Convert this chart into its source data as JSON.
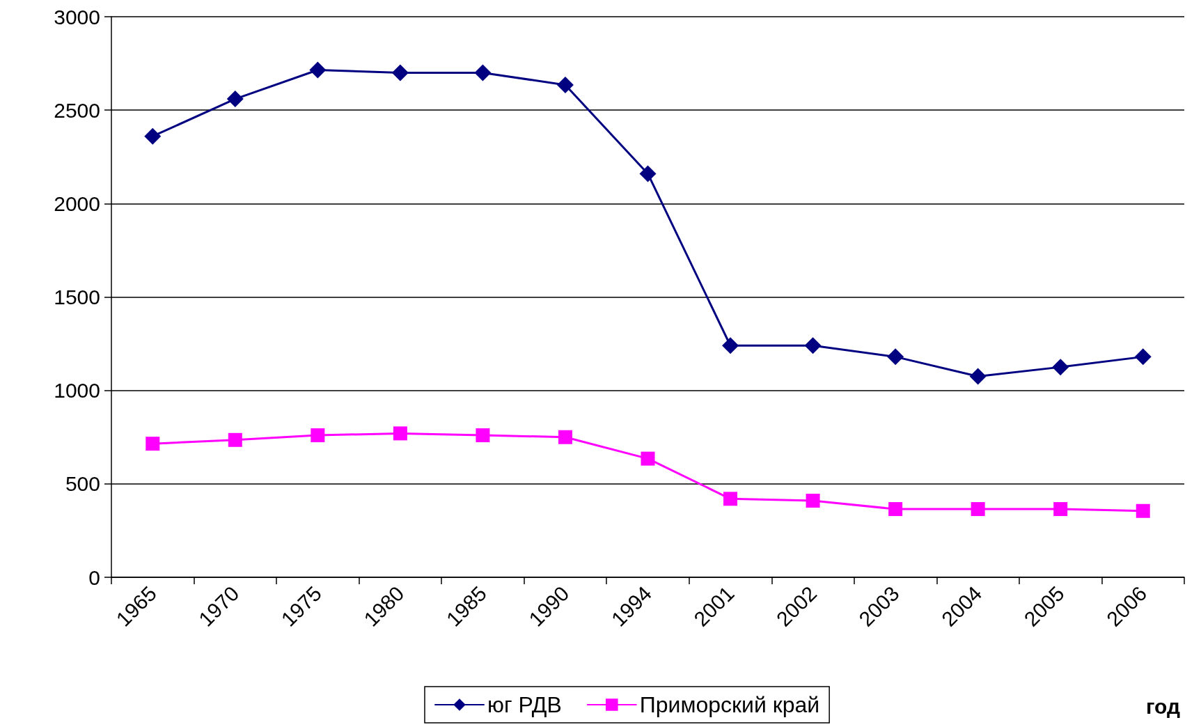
{
  "chart_data": {
    "type": "line",
    "xlabel": "год",
    "categories": [
      "1965",
      "1970",
      "1975",
      "1980",
      "1985",
      "1990",
      "1994",
      "2001",
      "2002",
      "2003",
      "2004",
      "2005",
      "2006"
    ],
    "series": [
      {
        "name": "юг РДВ",
        "color": "#000080",
        "marker": "diamond",
        "values": [
          2360,
          2560,
          2715,
          2700,
          2700,
          2635,
          2160,
          1240,
          1240,
          1180,
          1075,
          1125,
          1180
        ]
      },
      {
        "name": "Приморский край",
        "color": "#ff00ff",
        "marker": "square",
        "values": [
          715,
          735,
          760,
          770,
          760,
          750,
          635,
          420,
          410,
          365,
          365,
          365,
          355
        ]
      }
    ],
    "ylim": [
      0,
      3000
    ],
    "yticks": [
      0,
      500,
      1000,
      1500,
      2000,
      2500,
      3000
    ],
    "grid": "y",
    "legend": "bottom",
    "line_style": "solid"
  }
}
